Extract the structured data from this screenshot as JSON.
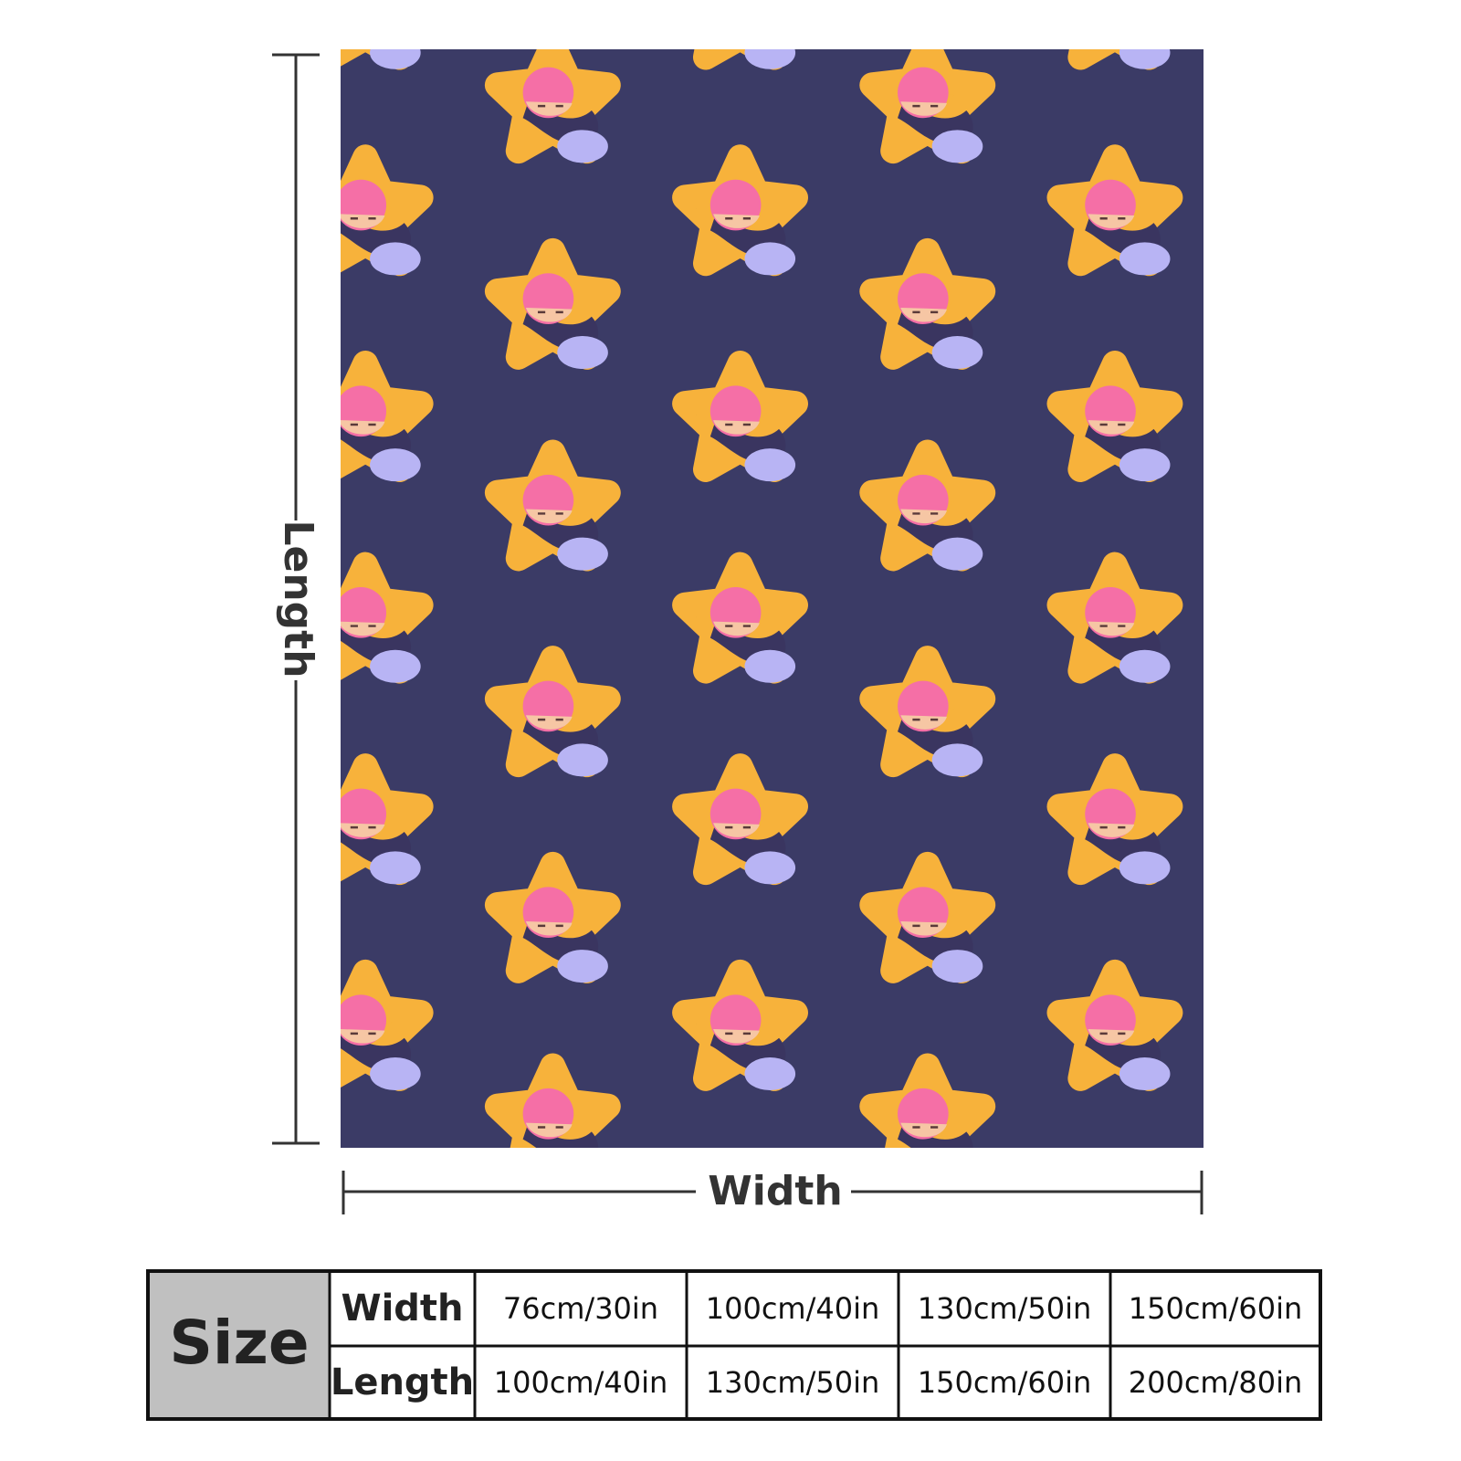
{
  "labels": {
    "length": "Length",
    "width": "Width"
  },
  "table": {
    "size_label": "Size",
    "rows": [
      [
        "Width",
        "76cm/30in",
        "100cm/40in",
        "130cm/50in",
        "150cm/60in"
      ],
      [
        "Length",
        "100cm/40in",
        "130cm/50in",
        "150cm/60in",
        "200cm/80in"
      ]
    ]
  }
}
